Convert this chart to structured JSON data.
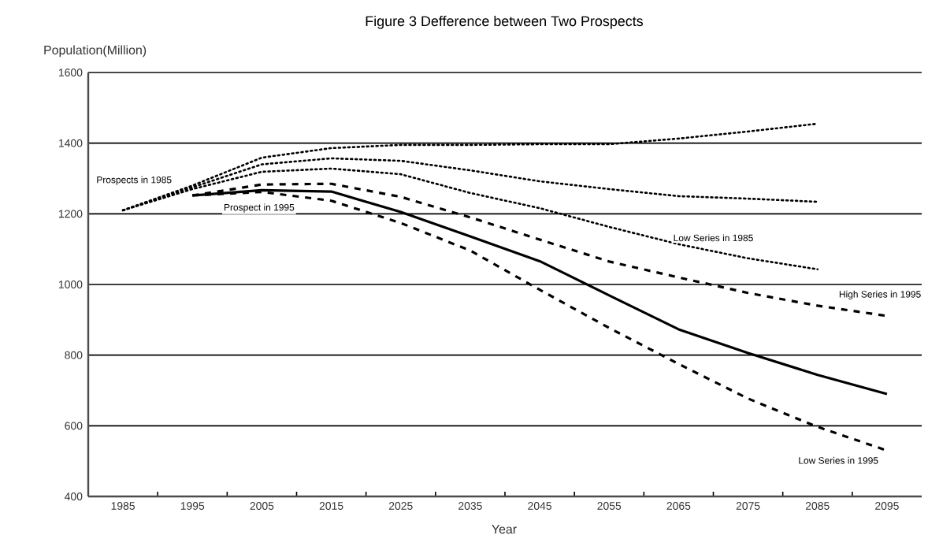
{
  "chart_data": {
    "type": "line",
    "title": "Figure 3 Defference between Two Prospects",
    "ylabel": "Population(Million)",
    "xlabel": "Year",
    "categories": [
      "1985",
      "1995",
      "2005",
      "2015",
      "2025",
      "2035",
      "2045",
      "2055",
      "2065",
      "2075",
      "2085",
      "2095"
    ],
    "series": [
      {
        "color": "#000000",
        "line_style": "dotted",
        "values": [
          1210,
          1280,
          1359,
          1386,
          1395,
          1395,
          1397,
          1397,
          1413,
          1433,
          1455,
          null
        ]
      },
      {
        "color": "#000000",
        "line_style": "dotted",
        "values": [
          1210,
          1275,
          1340,
          1357,
          1350,
          1323,
          1292,
          1270,
          1250,
          1243,
          1234,
          null
        ]
      },
      {
        "color": "#000000",
        "line_style": "dotted",
        "values": [
          1210,
          1270,
          1319,
          1328,
          1312,
          1259,
          1216,
          1163,
          1114,
          1074,
          1043,
          null
        ]
      },
      {
        "color": "#000000",
        "line_style": "dashed",
        "values": [
          null,
          1252,
          1283,
          1285,
          1248,
          1190,
          1127,
          1065,
          1020,
          976,
          940,
          911
        ]
      },
      {
        "color": "#000000",
        "line_style": "dashed",
        "values": [
          null,
          1252,
          1262,
          1237,
          1174,
          1096,
          985,
          877,
          775,
          677,
          597,
          530
        ]
      },
      {
        "color": "#000000",
        "line_style": "solid",
        "values": [
          null,
          1252,
          1267,
          1263,
          1205,
          1136,
          1066,
          969,
          873,
          806,
          744,
          690
        ]
      }
    ],
    "ylim": [
      400,
      1600
    ],
    "yticks": [
      400,
      600,
      800,
      1000,
      1200,
      1400,
      1600
    ],
    "grid": "y",
    "marker": "none",
    "annotations": [
      "Prospects in 1985",
      "Prospect in 1995",
      "Low Series in 1985",
      "High Series in 1995",
      "Low Series in 1995"
    ]
  }
}
